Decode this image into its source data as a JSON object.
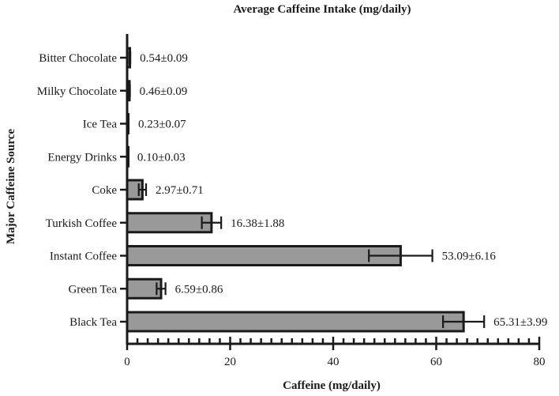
{
  "chart_data": {
    "type": "bar",
    "orientation": "horizontal",
    "title": "Average Caffeine Intake (mg/daily)",
    "xlabel": "Caffeine (mg/daily)",
    "ylabel": "Major Caffeine Source",
    "xlim": [
      0,
      80
    ],
    "xticks": [
      0,
      20,
      40,
      60,
      80
    ],
    "xtick_labels": [
      "0",
      "20",
      "40",
      "60",
      "80"
    ],
    "minor_tick_step": 2,
    "grid": false,
    "legend": "none",
    "bar_color": "#999999",
    "bar_edge_color": "#1a1a1a",
    "axis_color": "#1a1a1a",
    "categories": [
      "Bitter Chocolate",
      "Milky Chocolate",
      "Ice Tea",
      "Energy Drinks",
      "Coke",
      "Turkish Coffee",
      "Instant Coffee",
      "Green Tea",
      "Black Tea"
    ],
    "values": [
      0.54,
      0.46,
      0.23,
      0.1,
      2.97,
      16.38,
      53.09,
      6.59,
      65.31
    ],
    "errors": [
      0.09,
      0.09,
      0.07,
      0.03,
      0.71,
      1.88,
      6.16,
      0.86,
      3.99
    ],
    "value_labels": [
      "0.54±0.09",
      "0.46±0.09",
      "0.23±0.07",
      "0.10±0.03",
      "2.97±0.71",
      "16.38±1.88",
      "53.09±6.16",
      "6.59±0.86",
      "65.31±3.99"
    ]
  }
}
